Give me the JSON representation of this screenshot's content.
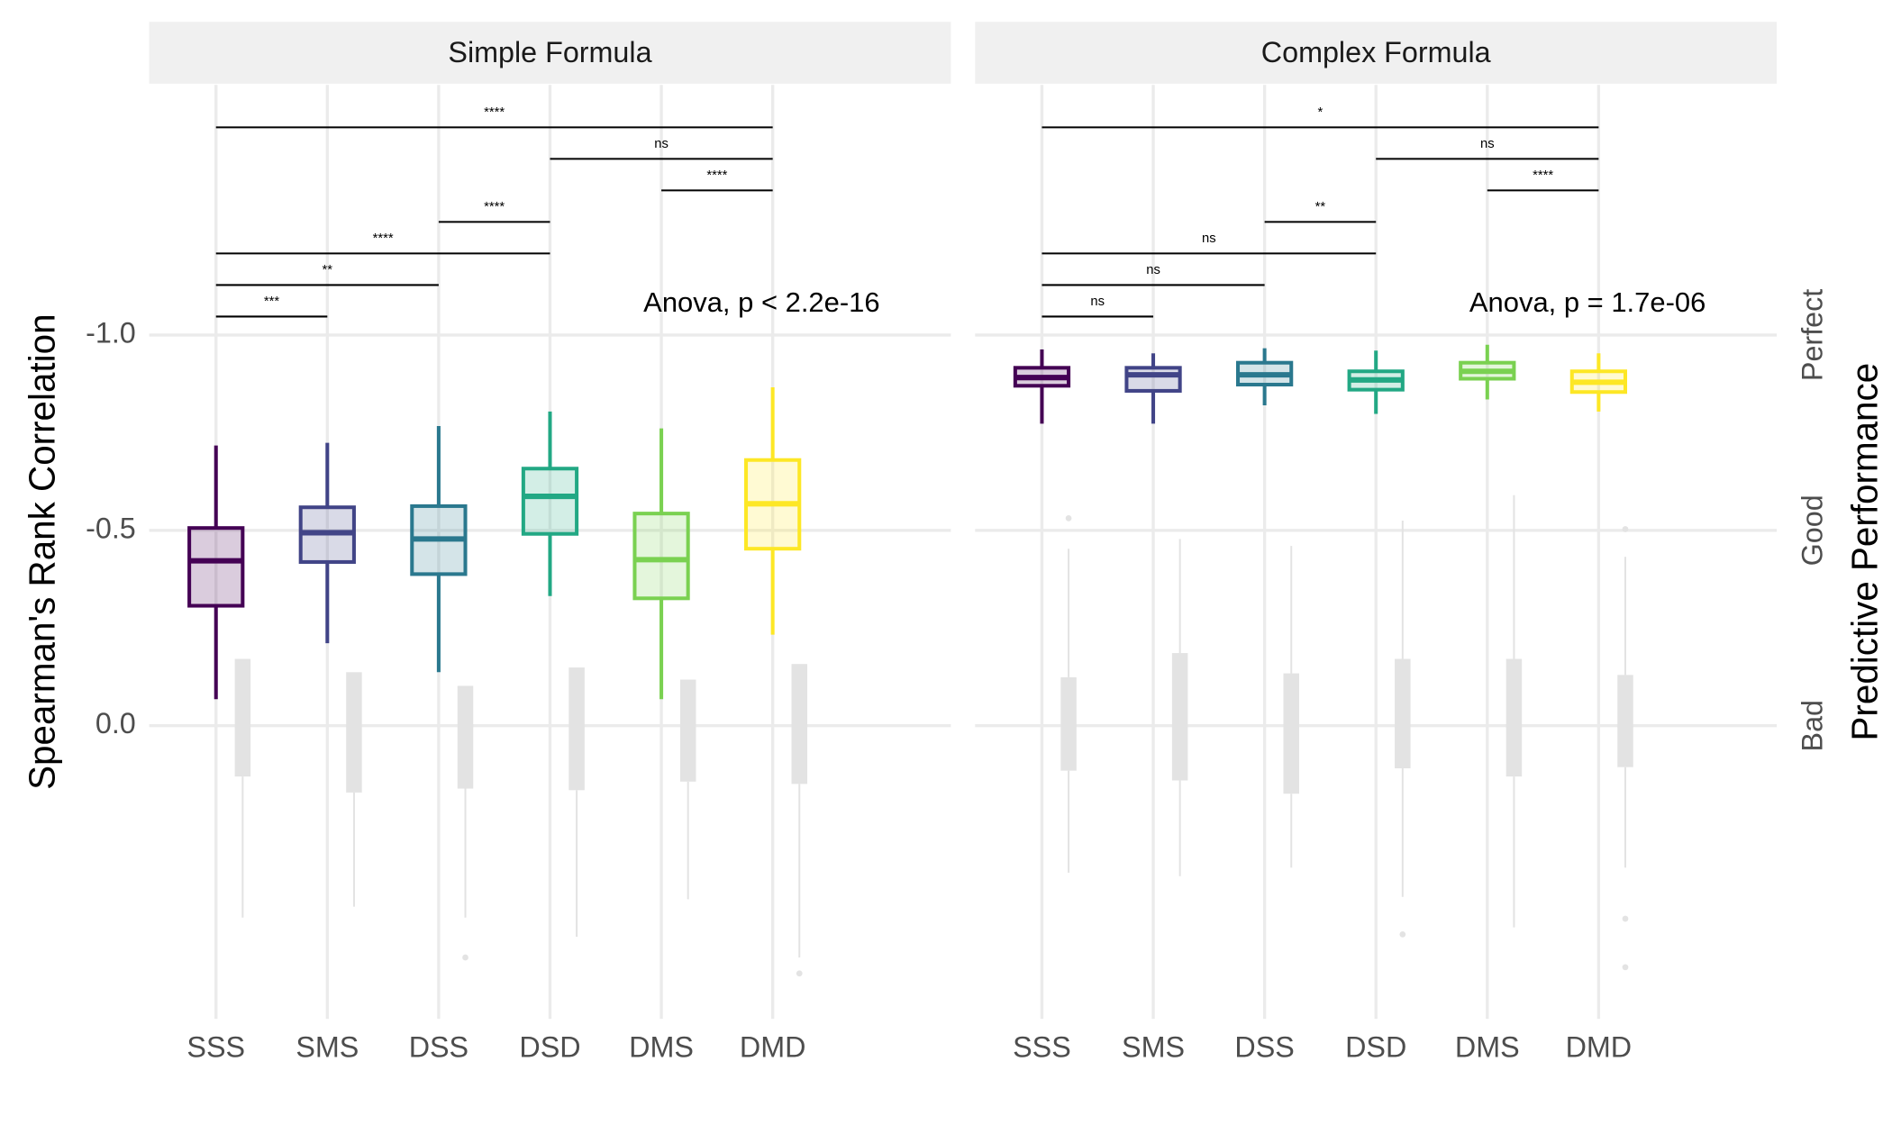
{
  "chart_data": {
    "type": "box",
    "y_label": "Spearman's Rank Correlation",
    "y2_label": "Predictive Performance",
    "categories": [
      "SSS",
      "SMS",
      "DSS",
      "DSD",
      "DMS",
      "DMD"
    ],
    "colors": [
      "#440154",
      "#414487",
      "#2a788e",
      "#22a884",
      "#7ad151",
      "#fde725"
    ],
    "null_color": "#e3e3e3",
    "ylim": [
      -1.64,
      0.75
    ],
    "y_reversed": true,
    "yticks": [
      {
        "value": -1,
        "label": "-1.0"
      },
      -0.5,
      {
        "value": 0,
        "label": "0.0"
      }
    ],
    "y2lim": [
      -1.64,
      0.75
    ],
    "y2ticks": [
      {
        "value": -1,
        "label": "Perfect"
      },
      {
        "value": -0.5,
        "label": "Good"
      },
      {
        "value": 0,
        "label": "Bad"
      }
    ],
    "grid": true,
    "panels": [
      {
        "title": "Simple Formula",
        "annotation": "Anova, p < 2.2e-16",
        "boxes": [
          {
            "min": -0.717,
            "q1": -0.506,
            "median": -0.422,
            "q3": -0.307,
            "max": -0.068
          },
          {
            "min": -0.724,
            "q1": -0.559,
            "median": -0.494,
            "q3": -0.419,
            "max": -0.211
          },
          {
            "min": -0.767,
            "q1": -0.562,
            "median": -0.478,
            "q3": -0.388,
            "max": -0.137
          },
          {
            "min": -0.804,
            "q1": -0.658,
            "median": -0.587,
            "q3": -0.491,
            "max": -0.332
          },
          {
            "min": -0.761,
            "q1": -0.543,
            "median": -0.425,
            "q3": -0.326,
            "max": -0.068
          },
          {
            "min": -0.866,
            "q1": -0.68,
            "median": -0.568,
            "q3": -0.453,
            "max": -0.233
          }
        ],
        "null_boxes": [
          {
            "min": -0.171,
            "q1": -0.171,
            "q3": 0.13,
            "max": 0.491,
            "outliers": []
          },
          {
            "min": -0.137,
            "q1": -0.137,
            "q3": 0.171,
            "max": 0.463,
            "outliers": []
          },
          {
            "min": -0.102,
            "q1": -0.102,
            "q3": 0.161,
            "max": 0.491,
            "outliers": [
              0.593
            ]
          },
          {
            "min": -0.149,
            "q1": -0.149,
            "q3": 0.165,
            "max": 0.54,
            "outliers": []
          },
          {
            "min": -0.118,
            "q1": -0.118,
            "q3": 0.143,
            "max": 0.444,
            "outliers": []
          },
          {
            "min": -0.158,
            "q1": -0.158,
            "q3": 0.149,
            "max": 0.593,
            "outliers": [
              0.634
            ]
          }
        ],
        "brackets": [
          {
            "pair": [
              "SSS",
              "DMD"
            ],
            "label": "****"
          },
          {
            "pair": [
              "DSD",
              "DMD"
            ],
            "label": "ns"
          },
          {
            "pair": [
              "DMS",
              "DMD"
            ],
            "label": "****"
          },
          {
            "pair": [
              "DSS",
              "DSD"
            ],
            "label": "****"
          },
          {
            "pair": [
              "SSS",
              "DSD"
            ],
            "label": "****"
          },
          {
            "pair": [
              "SSS",
              "DSS"
            ],
            "label": "**"
          },
          {
            "pair": [
              "SSS",
              "SMS"
            ],
            "label": "***"
          }
        ]
      },
      {
        "title": "Complex Formula",
        "annotation": "Anova, p = 1.7e-06",
        "boxes": [
          {
            "min": -0.963,
            "q1": -0.916,
            "median": -0.891,
            "q3": -0.87,
            "max": -0.773
          },
          {
            "min": -0.953,
            "q1": -0.916,
            "median": -0.898,
            "q3": -0.857,
            "max": -0.773
          },
          {
            "min": -0.966,
            "q1": -0.929,
            "median": -0.898,
            "q3": -0.873,
            "max": -0.82
          },
          {
            "min": -0.96,
            "q1": -0.907,
            "median": -0.885,
            "q3": -0.86,
            "max": -0.798
          },
          {
            "min": -0.975,
            "q1": -0.929,
            "median": -0.907,
            "q3": -0.888,
            "max": -0.835
          },
          {
            "min": -0.953,
            "q1": -0.907,
            "median": -0.879,
            "q3": -0.854,
            "max": -0.804
          }
        ],
        "null_boxes": [
          {
            "min": -0.453,
            "q1": -0.124,
            "q3": 0.115,
            "max": 0.376,
            "outliers": [
              -0.531
            ]
          },
          {
            "min": -0.478,
            "q1": -0.186,
            "q3": 0.14,
            "max": 0.385,
            "outliers": []
          },
          {
            "min": -0.46,
            "q1": -0.134,
            "q3": 0.174,
            "max": 0.363,
            "outliers": []
          },
          {
            "min": -0.525,
            "q1": -0.171,
            "q3": 0.109,
            "max": 0.438,
            "outliers": [
              0.534
            ]
          },
          {
            "min": -0.59,
            "q1": -0.171,
            "q3": 0.13,
            "max": 0.516,
            "outliers": []
          },
          {
            "min": -0.432,
            "q1": -0.13,
            "q3": 0.106,
            "max": 0.363,
            "outliers": [
              -0.503,
              0.494,
              0.618
            ]
          }
        ],
        "brackets": [
          {
            "pair": [
              "SSS",
              "DMD"
            ],
            "label": "*"
          },
          {
            "pair": [
              "DSD",
              "DMD"
            ],
            "label": "ns"
          },
          {
            "pair": [
              "DMS",
              "DMD"
            ],
            "label": "****"
          },
          {
            "pair": [
              "DSS",
              "DSD"
            ],
            "label": "**"
          },
          {
            "pair": [
              "SSS",
              "DSD"
            ],
            "label": "ns"
          },
          {
            "pair": [
              "SSS",
              "DSS"
            ],
            "label": "ns"
          },
          {
            "pair": [
              "SSS",
              "SMS"
            ],
            "label": "ns"
          }
        ]
      }
    ]
  }
}
